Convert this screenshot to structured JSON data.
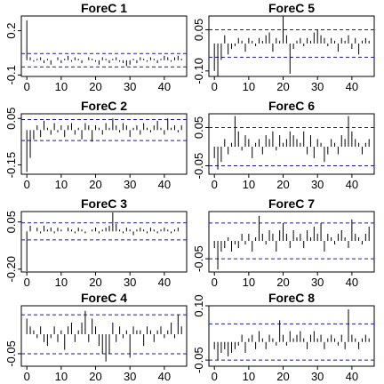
{
  "chart_data": [
    {
      "type": "bar",
      "title": "ForeC 1",
      "x": [
        0,
        1,
        2,
        3,
        4,
        5,
        6,
        7,
        8,
        9,
        10,
        11,
        12,
        13,
        14,
        15,
        16,
        17,
        18,
        19,
        20,
        21,
        22,
        23,
        24,
        25,
        26,
        27,
        28,
        29,
        30,
        31,
        32,
        33,
        34,
        35,
        36,
        37,
        38,
        39,
        40,
        41,
        42,
        43,
        44,
        45
      ],
      "values": [
        0.27,
        0.02,
        -0.01,
        0.01,
        0.02,
        -0.02,
        0.01,
        -0.03,
        0.0,
        0.02,
        -0.02,
        0.01,
        0.03,
        -0.01,
        0.02,
        0.01,
        -0.02,
        0.0,
        0.02,
        0.01,
        -0.01,
        -0.03,
        0.02,
        0.01,
        -0.02,
        0.01,
        0.02,
        -0.01,
        -0.02,
        -0.04,
        -0.03,
        0.01,
        -0.02,
        0.02,
        0.01,
        -0.01,
        0.02,
        0.01,
        -0.02,
        0.01,
        0.03,
        0.02,
        -0.01,
        0.02,
        0.03,
        0.01
      ],
      "xlim": [
        -1.6,
        46.5
      ],
      "xticks": [
        0,
        10,
        20,
        30,
        40
      ],
      "ylim": [
        -0.11,
        0.3
      ],
      "yticks": [
        -0.1,
        0.2
      ],
      "bounds": [
        -0.045,
        0.045
      ],
      "color": "#000000",
      "bound_color": "#1a1aa6"
    },
    {
      "type": "bar",
      "title": "ForeC 2",
      "x": [
        0,
        1,
        2,
        3,
        4,
        5,
        6,
        7,
        8,
        9,
        10,
        11,
        12,
        13,
        14,
        15,
        16,
        17,
        18,
        19,
        20,
        21,
        22,
        23,
        24,
        25,
        26,
        27,
        28,
        29,
        30,
        31,
        32,
        33,
        34,
        35,
        36,
        37,
        38,
        39,
        40,
        41,
        42,
        43,
        44,
        45
      ],
      "values": [
        -0.18,
        -0.12,
        -0.04,
        0.02,
        -0.03,
        0.04,
        0.01,
        -0.02,
        0.03,
        -0.01,
        0.02,
        -0.03,
        0.02,
        0.03,
        -0.02,
        0.01,
        -0.04,
        0.03,
        0.02,
        -0.05,
        0.02,
        0.01,
        -0.02,
        0.03,
        0.01,
        0.05,
        0.02,
        -0.01,
        0.03,
        0.02,
        -0.03,
        0.01,
        0.02,
        -0.02,
        0.03,
        0.01,
        -0.01,
        0.02,
        0.04,
        0.01,
        -0.02,
        0.05,
        0.01,
        0.02,
        -0.01,
        0.02
      ],
      "xlim": [
        -1.6,
        46.5
      ],
      "xticks": [
        0,
        10,
        20,
        30,
        40
      ],
      "ylim": [
        -0.19,
        0.07
      ],
      "yticks": [
        -0.15,
        0.05
      ],
      "bounds": [
        -0.045,
        0.045
      ],
      "color": "#000000",
      "bound_color": "#1a1aa6"
    },
    {
      "type": "bar",
      "title": "ForeC 3",
      "x": [
        0,
        1,
        2,
        3,
        4,
        5,
        6,
        7,
        8,
        9,
        10,
        11,
        12,
        13,
        14,
        15,
        16,
        17,
        18,
        19,
        20,
        21,
        22,
        23,
        24,
        25,
        26,
        27,
        28,
        29,
        30,
        31,
        32,
        33,
        34,
        35,
        36,
        37,
        38,
        39,
        40,
        41,
        42,
        43,
        44,
        45
      ],
      "values": [
        -0.21,
        0.03,
        0.0,
        0.02,
        -0.01,
        0.03,
        0.01,
        0.02,
        -0.01,
        0.02,
        0.01,
        0.0,
        0.02,
        0.01,
        -0.01,
        0.02,
        0.01,
        -0.01,
        0.0,
        0.01,
        0.02,
        -0.01,
        0.01,
        0.02,
        0.03,
        0.1,
        0.04,
        0.01,
        -0.01,
        0.02,
        0.01,
        -0.02,
        0.01,
        0.02,
        0.01,
        -0.01,
        0.02,
        0.01,
        -0.01,
        0.01,
        0.02,
        0.01,
        -0.01,
        0.01,
        0.02,
        0.0
      ],
      "xlim": [
        -1.6,
        46.5
      ],
      "xticks": [
        0,
        10,
        20,
        30,
        40
      ],
      "ylim": [
        -0.215,
        0.105
      ],
      "yticks": [
        {
          "value": -0.2,
          "label": "-0.20"
        },
        0.05
      ],
      "bounds": [
        -0.045,
        0.045
      ],
      "color": "#000000",
      "bound_color": "#1a1aa6"
    },
    {
      "type": "bar",
      "title": "ForeC 4",
      "x": [
        0,
        1,
        2,
        3,
        4,
        5,
        6,
        7,
        8,
        9,
        10,
        11,
        12,
        13,
        14,
        15,
        16,
        17,
        18,
        19,
        20,
        21,
        22,
        23,
        24,
        25,
        26,
        27,
        28,
        29,
        30,
        31,
        32,
        33,
        34,
        35,
        36,
        37,
        38,
        39,
        40,
        41,
        42,
        43,
        44,
        45
      ],
      "values": [
        0.04,
        0.02,
        0.01,
        -0.01,
        0.02,
        -0.02,
        -0.03,
        -0.01,
        0.02,
        -0.02,
        0.01,
        -0.04,
        0.02,
        0.03,
        -0.02,
        0.01,
        0.03,
        0.06,
        -0.02,
        0.04,
        0.02,
        -0.03,
        -0.05,
        -0.07,
        -0.05,
        0.03,
        -0.02,
        0.02,
        -0.01,
        0.01,
        -0.06,
        0.02,
        0.01,
        0.01,
        -0.03,
        0.02,
        0.01,
        -0.02,
        0.01,
        0.02,
        -0.01,
        0.01,
        0.03,
        -0.01,
        0.05,
        0.02
      ],
      "xlim": [
        -1.6,
        46.5
      ],
      "xticks": [
        0,
        10,
        20,
        30,
        40
      ],
      "ylim": [
        -0.082,
        0.073
      ],
      "yticks": [
        -0.05
      ],
      "bounds": [
        -0.05,
        0.05
      ],
      "color": "#000000",
      "bound_color": "#1a1aa6"
    },
    {
      "type": "bar",
      "title": "ForeC 5",
      "x": [
        0,
        1,
        2,
        3,
        4,
        5,
        6,
        7,
        8,
        9,
        10,
        11,
        12,
        13,
        14,
        15,
        16,
        17,
        18,
        19,
        20,
        21,
        22,
        23,
        24,
        25,
        26,
        27,
        28,
        29,
        30,
        31,
        32,
        33,
        34,
        35,
        36,
        37,
        38,
        39,
        40,
        41,
        42,
        43,
        44,
        45
      ],
      "values": [
        -0.1,
        -0.12,
        -0.06,
        0.03,
        -0.04,
        -0.02,
        -0.01,
        0.02,
        0.01,
        -0.03,
        0.02,
        0.01,
        -0.01,
        0.02,
        0.01,
        0.03,
        0.04,
        -0.03,
        0.02,
        0.01,
        0.1,
        0.03,
        -0.11,
        -0.02,
        0.01,
        0.02,
        -0.01,
        0.02,
        0.01,
        0.04,
        0.05,
        0.03,
        0.02,
        -0.01,
        0.02,
        0.01,
        -0.03,
        0.02,
        0.01,
        0.03,
        -0.02,
        0.02,
        -0.04,
        0.01,
        0.02,
        0.01
      ],
      "xlim": [
        -1.6,
        46.5
      ],
      "xticks": [
        0,
        10,
        20,
        30,
        40
      ],
      "ylim": [
        -0.12,
        0.1
      ],
      "yticks": [
        {
          "value": -0.1,
          "label": "-0.10"
        },
        0.05
      ],
      "bounds": [
        -0.05,
        0.05
      ],
      "color": "#000000",
      "bound_color": "#1a1aa6"
    },
    {
      "type": "bar",
      "title": "ForeC 6",
      "x": [
        0,
        1,
        2,
        3,
        4,
        5,
        6,
        7,
        8,
        9,
        10,
        11,
        12,
        13,
        14,
        15,
        16,
        17,
        18,
        19,
        20,
        21,
        22,
        23,
        24,
        25,
        26,
        27,
        28,
        29,
        30,
        31,
        32,
        33,
        34,
        35,
        36,
        37,
        38,
        39,
        40,
        41,
        42,
        43,
        44,
        45
      ],
      "values": [
        -0.03,
        -0.06,
        -0.04,
        0.02,
        -0.02,
        0.01,
        0.08,
        0.04,
        -0.01,
        0.03,
        0.02,
        -0.03,
        0.01,
        0.02,
        -0.02,
        0.03,
        0.02,
        0.04,
        -0.01,
        0.03,
        0.01,
        0.02,
        0.04,
        0.03,
        0.02,
        0.01,
        0.04,
        -0.02,
        0.03,
        -0.03,
        0.02,
        0.01,
        -0.04,
        -0.02,
        0.02,
        0.01,
        -0.02,
        0.03,
        0.02,
        0.08,
        0.04,
        0.02,
        0.01,
        -0.02,
        0.01,
        0.02
      ],
      "xlim": [
        -1.6,
        46.5
      ],
      "xticks": [
        0,
        10,
        20,
        30,
        40
      ],
      "ylim": [
        -0.072,
        0.086
      ],
      "yticks": [
        -0.05,
        0.05
      ],
      "bounds": [
        -0.05,
        0.05
      ],
      "color": "#000000",
      "bound_color": "#1a1aa6"
    },
    {
      "type": "bar",
      "title": "ForeC 7",
      "x": [
        0,
        1,
        2,
        3,
        4,
        5,
        6,
        7,
        8,
        9,
        10,
        11,
        12,
        13,
        14,
        15,
        16,
        17,
        18,
        19,
        20,
        21,
        22,
        23,
        24,
        25,
        26,
        27,
        28,
        29,
        30,
        31,
        32,
        33,
        34,
        35,
        36,
        37,
        38,
        39,
        40,
        41,
        42,
        43,
        44,
        45
      ],
      "values": [
        -0.02,
        -0.08,
        -0.03,
        -0.02,
        0.01,
        -0.03,
        -0.01,
        -0.02,
        0.02,
        -0.01,
        0.02,
        -0.03,
        0.01,
        0.07,
        0.02,
        -0.01,
        0.03,
        0.02,
        -0.03,
        0.03,
        0.05,
        0.02,
        -0.02,
        0.03,
        0.01,
        0.02,
        -0.02,
        0.03,
        0.01,
        0.04,
        0.02,
        0.05,
        -0.03,
        0.02,
        0.01,
        -0.01,
        0.02,
        0.03,
        0.01,
        -0.02,
        0.06,
        0.02,
        0.01,
        -0.01,
        0.02,
        0.04
      ],
      "xlim": [
        -1.6,
        46.5
      ],
      "xticks": [
        0,
        10,
        20,
        30,
        40
      ],
      "ylim": [
        -0.087,
        0.082
      ],
      "yticks": [
        -0.05
      ],
      "bounds": [
        -0.05,
        0.05
      ],
      "color": "#000000",
      "bound_color": "#1a1aa6"
    },
    {
      "type": "bar",
      "title": "ForeC 8",
      "x": [
        0,
        1,
        2,
        3,
        4,
        5,
        6,
        7,
        8,
        9,
        10,
        11,
        12,
        13,
        14,
        15,
        16,
        17,
        18,
        19,
        20,
        21,
        22,
        23,
        24,
        25,
        26,
        27,
        28,
        29,
        30,
        31,
        32,
        33,
        34,
        35,
        36,
        37,
        38,
        39,
        40,
        41,
        42,
        43,
        44,
        45
      ],
      "values": [
        -0.02,
        -0.05,
        -0.03,
        -0.02,
        -0.04,
        -0.03,
        -0.02,
        -0.01,
        0.02,
        -0.03,
        0.01,
        0.02,
        -0.02,
        0.03,
        0.01,
        -0.02,
        0.02,
        0.01,
        -0.01,
        0.06,
        0.02,
        -0.01,
        0.03,
        0.01,
        0.02,
        0.03,
        0.01,
        -0.02,
        0.02,
        0.03,
        0.01,
        0.02,
        -0.02,
        0.01,
        0.02,
        0.01,
        -0.01,
        0.02,
        -0.02,
        0.09,
        0.02,
        0.01,
        -0.02,
        0.01,
        0.02,
        0.01
      ],
      "xlim": [
        -1.6,
        46.5
      ],
      "xticks": [
        0,
        10,
        20,
        30,
        40
      ],
      "ylim": [
        -0.067,
        0.1
      ],
      "yticks": [
        -0.05,
        {
          "value": 0.1,
          "label": "0.10"
        }
      ],
      "bounds": [
        -0.05,
        0.05
      ],
      "color": "#000000",
      "bound_color": "#1a1aa6"
    }
  ]
}
